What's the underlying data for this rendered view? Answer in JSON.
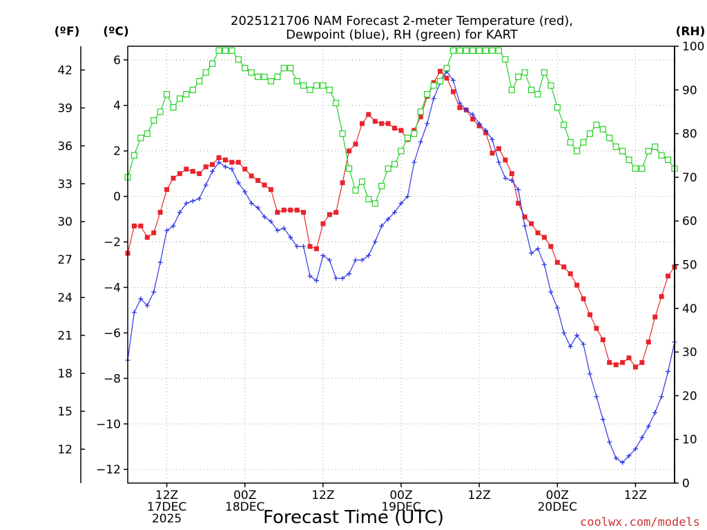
{
  "chart_data": {
    "type": "line",
    "title_lines": [
      "2025121706 NAM Forecast 2-meter Temperature (red),",
      "Dewpoint (blue), RH (green) for KART"
    ],
    "xlabel": "Forecast Time (UTC)",
    "credit": "coolwx.com/models",
    "credit_color": "#cc3333",
    "y_left_c": {
      "unit": "(ºC)",
      "ylim": [
        -12.6,
        6.6
      ],
      "ticks": [
        6,
        4,
        2,
        0,
        -2,
        -4,
        -6,
        -8,
        -10,
        -12
      ],
      "labels": [
        "6",
        "4",
        "2",
        "0",
        "−2",
        "−4",
        "−6",
        "−8",
        "−10",
        "−12"
      ]
    },
    "y_left_f": {
      "unit": "(ºF)",
      "ticks": [
        42,
        39,
        36,
        33,
        30,
        27,
        24,
        21,
        18,
        15,
        12
      ],
      "labels": [
        "42",
        "39",
        "36",
        "33",
        "30",
        "27",
        "24",
        "21",
        "18",
        "15",
        "12"
      ]
    },
    "y_right_rh": {
      "unit": "(RH)",
      "ylim": [
        0,
        100
      ],
      "ticks": [
        100,
        90,
        80,
        70,
        60,
        50,
        40,
        30,
        20,
        10,
        0
      ],
      "labels": [
        "100",
        "90",
        "80",
        "70",
        "60",
        "50",
        "40",
        "30",
        "20",
        "10",
        "0"
      ]
    },
    "x": {
      "range_hours": [
        0,
        84
      ],
      "ticks": [
        6,
        18,
        30,
        42,
        54,
        66,
        78
      ],
      "tick_labels": [
        {
          "hour": 6,
          "lines": [
            "12Z",
            "17DEC",
            "2025"
          ]
        },
        {
          "hour": 18,
          "lines": [
            "00Z",
            "18DEC"
          ]
        },
        {
          "hour": 30,
          "lines": [
            "12Z"
          ]
        },
        {
          "hour": 42,
          "lines": [
            "00Z",
            "19DEC"
          ]
        },
        {
          "hour": 54,
          "lines": [
            "12Z"
          ]
        },
        {
          "hour": 66,
          "lines": [
            "00Z",
            "20DEC"
          ]
        },
        {
          "hour": 78,
          "lines": [
            "12Z"
          ]
        }
      ]
    },
    "grid": true,
    "series": [
      {
        "name": "Temperature",
        "axis": "celsius",
        "color": "#e8242b",
        "marker": "filled-square",
        "values": [
          -2.5,
          -1.3,
          -1.3,
          -1.8,
          -1.6,
          -0.7,
          0.3,
          0.8,
          1.0,
          1.2,
          1.1,
          1.0,
          1.3,
          1.4,
          1.7,
          1.6,
          1.5,
          1.5,
          1.2,
          0.9,
          0.7,
          0.5,
          0.3,
          -0.7,
          -0.6,
          -0.6,
          -0.6,
          -0.7,
          -2.2,
          -2.3,
          -1.2,
          -0.8,
          -0.7,
          0.6,
          2.0,
          2.3,
          3.2,
          3.6,
          3.3,
          3.2,
          3.2,
          3.0,
          2.9,
          2.5,
          2.9,
          3.5,
          4.4,
          5.0,
          5.5,
          5.2,
          4.6,
          3.9,
          3.8,
          3.4,
          3.1,
          2.8,
          1.9,
          2.1,
          1.6,
          1.0,
          -0.3,
          -0.9,
          -1.2,
          -1.6,
          -1.8,
          -2.2,
          -2.9,
          -3.1,
          -3.4,
          -3.9,
          -4.5,
          -5.2,
          -5.8,
          -6.3,
          -7.3,
          -7.4,
          -7.3,
          -7.1,
          -7.5,
          -7.3,
          -6.4,
          -5.3,
          -4.4,
          -3.5,
          -3.1
        ]
      },
      {
        "name": "Dewpoint",
        "axis": "celsius",
        "color": "#2b35e8",
        "marker": "plus",
        "values": [
          -7.2,
          -5.1,
          -4.5,
          -4.8,
          -4.2,
          -2.9,
          -1.5,
          -1.3,
          -0.7,
          -0.3,
          -0.2,
          -0.1,
          0.5,
          1.1,
          1.5,
          1.3,
          1.2,
          0.6,
          0.2,
          -0.3,
          -0.5,
          -0.9,
          -1.1,
          -1.5,
          -1.4,
          -1.8,
          -2.2,
          -2.2,
          -3.5,
          -3.7,
          -2.6,
          -2.8,
          -3.6,
          -3.6,
          -3.4,
          -2.8,
          -2.8,
          -2.6,
          -2.0,
          -1.3,
          -1.0,
          -0.7,
          -0.3,
          0.0,
          1.5,
          2.4,
          3.2,
          4.3,
          5.0,
          5.5,
          5.1,
          4.1,
          3.8,
          3.6,
          3.2,
          2.9,
          2.5,
          1.5,
          0.8,
          0.7,
          0.3,
          -1.3,
          -2.5,
          -2.3,
          -3.0,
          -4.2,
          -4.9,
          -6.0,
          -6.6,
          -6.1,
          -6.5,
          -7.8,
          -8.8,
          -9.8,
          -10.8,
          -11.5,
          -11.7,
          -11.4,
          -11.1,
          -10.6,
          -10.1,
          -9.5,
          -8.8,
          -7.7,
          -6.4
        ]
      },
      {
        "name": "RH",
        "axis": "rh",
        "color": "#22d022",
        "marker": "open-square",
        "values": [
          70,
          75,
          79,
          80,
          83,
          85,
          89,
          86,
          88,
          89,
          90,
          92,
          94,
          96,
          99,
          99,
          99,
          97,
          95,
          94,
          93,
          93,
          92,
          93,
          95,
          95,
          92,
          91,
          90,
          91,
          91,
          90,
          87,
          80,
          72,
          67,
          69,
          65,
          64,
          68,
          72,
          73,
          76,
          79,
          80,
          85,
          89,
          91,
          92,
          95,
          99,
          99,
          99,
          99,
          99,
          99,
          99,
          99,
          97,
          90,
          93,
          94,
          90,
          89,
          94,
          91,
          86,
          82,
          78,
          76,
          78,
          80,
          82,
          81,
          79,
          77,
          76,
          74,
          72,
          72,
          76,
          77,
          75,
          74,
          72
        ]
      }
    ]
  }
}
